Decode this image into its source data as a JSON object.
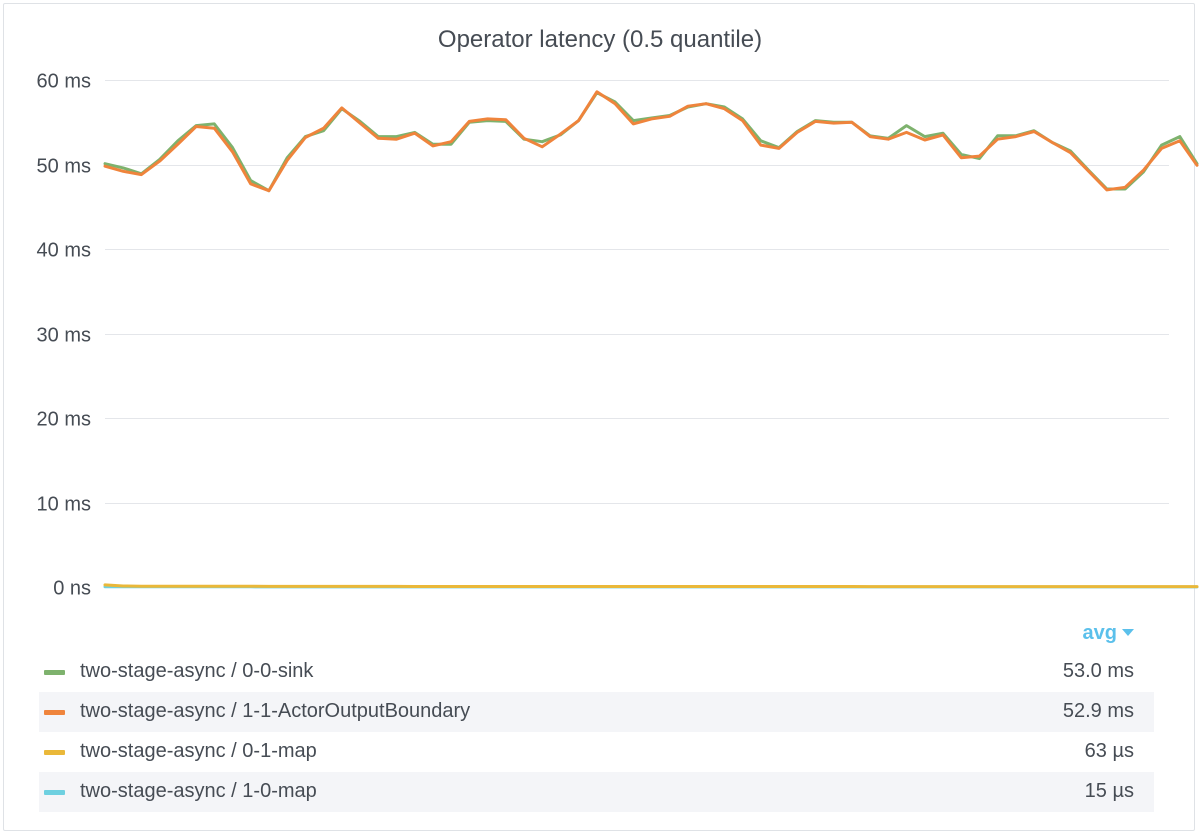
{
  "panel": {
    "title": "Operator latency (0.5 quantile)"
  },
  "legend": {
    "sort_label": "avg",
    "items": [
      {
        "name": "two-stage-async / 0-0-sink",
        "value": "53.0 ms",
        "color": "#7eb26d"
      },
      {
        "name": "two-stage-async / 1-1-ActorOutputBoundary",
        "value": "52.9 ms",
        "color": "#ef843c"
      },
      {
        "name": "two-stage-async / 0-1-map",
        "value": "63 µs",
        "color": "#eab839"
      },
      {
        "name": "two-stage-async / 1-0-map",
        "value": "15 µs",
        "color": "#6ed0e0"
      }
    ]
  },
  "chart_data": {
    "type": "line",
    "title": "Operator latency (0.5 quantile)",
    "ylabel": "",
    "y_unit": "ms",
    "ylim": [
      0,
      60
    ],
    "y_ticks": [
      0,
      10,
      20,
      30,
      40,
      50,
      60
    ],
    "y_tick_labels": [
      "0 ns",
      "10 ms",
      "20 ms",
      "30 ms",
      "40 ms",
      "50 ms",
      "60 ms"
    ],
    "grid": true,
    "legend_position": "bottom",
    "series": [
      {
        "name": "two-stage-async / 0-0-sink",
        "color": "#7eb26d",
        "values": [
          50.1,
          49.6,
          48.9,
          50.6,
          52.8,
          54.6,
          54.8,
          52.0,
          48.1,
          46.9,
          50.8,
          53.3,
          54.0,
          56.6,
          55.1,
          53.3,
          53.3,
          53.8,
          52.4,
          52.4,
          55.0,
          55.2,
          55.1,
          53.0,
          52.7,
          53.5,
          55.2,
          58.5,
          57.4,
          55.2,
          55.5,
          55.8,
          56.8,
          57.2,
          56.8,
          55.4,
          52.8,
          52.0,
          53.9,
          55.2,
          55.0,
          55.0,
          53.4,
          53.1,
          54.6,
          53.3,
          53.7,
          51.2,
          50.7,
          53.4,
          53.4,
          54.0,
          52.6,
          51.6,
          49.3,
          47.1,
          47.1,
          49.1,
          52.3,
          53.3,
          50.1
        ]
      },
      {
        "name": "two-stage-async / 1-1-ActorOutputBoundary",
        "color": "#ef843c",
        "values": [
          49.8,
          49.2,
          48.8,
          50.4,
          52.4,
          54.5,
          54.3,
          51.5,
          47.7,
          46.9,
          50.5,
          53.2,
          54.3,
          56.7,
          54.9,
          53.1,
          53.0,
          53.7,
          52.2,
          52.7,
          55.1,
          55.4,
          55.3,
          53.1,
          52.1,
          53.6,
          55.2,
          58.6,
          57.2,
          54.8,
          55.4,
          55.7,
          56.9,
          57.2,
          56.6,
          55.2,
          52.3,
          51.9,
          53.8,
          55.1,
          54.9,
          55.0,
          53.3,
          53.0,
          53.8,
          52.9,
          53.5,
          50.8,
          51.0,
          53.0,
          53.3,
          53.9,
          52.6,
          51.4,
          49.2,
          47.0,
          47.3,
          49.3,
          51.9,
          52.8,
          49.9
        ]
      },
      {
        "name": "two-stage-async / 0-1-map",
        "color": "#eab839",
        "values": [
          0.25,
          0.12,
          0.1,
          0.1,
          0.1,
          0.1,
          0.1,
          0.1,
          0.1,
          0.07,
          0.07,
          0.07,
          0.07,
          0.07,
          0.07,
          0.07,
          0.07,
          0.06,
          0.06,
          0.06,
          0.06,
          0.06,
          0.06,
          0.06,
          0.06,
          0.06,
          0.06,
          0.06,
          0.06,
          0.06,
          0.06,
          0.06,
          0.06,
          0.06,
          0.06,
          0.06,
          0.06,
          0.06,
          0.06,
          0.06,
          0.06,
          0.06,
          0.05,
          0.05,
          0.05,
          0.05,
          0.05,
          0.05,
          0.05,
          0.05,
          0.05,
          0.05,
          0.05,
          0.05,
          0.05,
          0.05,
          0.05,
          0.05,
          0.05,
          0.05,
          0.05
        ]
      },
      {
        "name": "two-stage-async / 1-0-map",
        "color": "#6ed0e0",
        "values": [
          0.02,
          0.02,
          0.02,
          0.02,
          0.02,
          0.02,
          0.02,
          0.02,
          0.02,
          0.015,
          0.015,
          0.015,
          0.015,
          0.015,
          0.015,
          0.015,
          0.015,
          0.015,
          0.015,
          0.015,
          0.015,
          0.015,
          0.015,
          0.015,
          0.015,
          0.015,
          0.015,
          0.015,
          0.015,
          0.015,
          0.015,
          0.015,
          0.015,
          0.015,
          0.015,
          0.015,
          0.015,
          0.015,
          0.015,
          0.015,
          0.015,
          0.015,
          0.015,
          0.015,
          0.015,
          0.015,
          0.015,
          0.015,
          0.015,
          0.015,
          0.015,
          0.015,
          0.015,
          0.015,
          0.015,
          0.015,
          0.015,
          0.015,
          0.015,
          0.015,
          0.015
        ]
      }
    ]
  }
}
